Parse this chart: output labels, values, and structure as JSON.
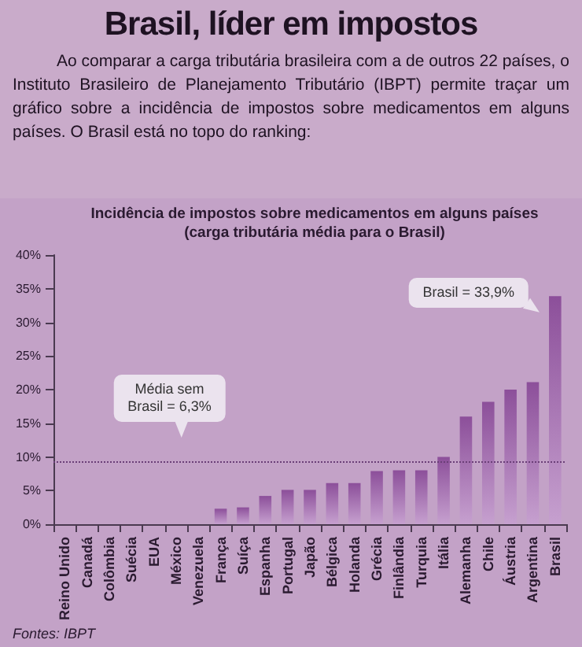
{
  "chart_data": {
    "type": "bar",
    "title": "Brasil, líder em impostos",
    "subtitle": "Ao comparar a carga tributária brasileira com a de outros 22 países, o Instituto Brasileiro de Planejamento Tributário (IBPT) permite traçar um gráfico sobre a incidência de impostos sobre medicamentos em alguns países. O Brasil está no topo do ranking:",
    "annotations": [
      "Incidência de impostos sobre medicamentos em alguns países",
      "(carga tributária média para o Brasil)",
      {
        "text": "Brasil = 33,9%",
        "x": "Brasil",
        "y": 33.9
      },
      "Média sem\nBrasil = 6,3%",
      "Fontes: IBPT"
    ],
    "categories": [
      "Reino Unido",
      "Canadá",
      "Colômbia",
      "Suécia",
      "EUA",
      "México",
      "Venezuela",
      "França",
      "Suíça",
      "Espanha",
      "Portugal",
      "Japão",
      "Bélgica",
      "Holanda",
      "Grécia",
      "Finlândia",
      "Turquia",
      "Itália",
      "Alemanha",
      "Chile",
      "Áustria",
      "Argentina",
      "Brasil"
    ],
    "values": [
      0,
      0,
      0,
      0,
      0,
      0,
      0,
      2.3,
      2.5,
      4.2,
      5.1,
      5.1,
      6.1,
      6.1,
      7.9,
      8.0,
      8.0,
      10.0,
      16.0,
      18.2,
      20.0,
      21.1,
      33.9
    ],
    "color": "#8c4f9a",
    "ylim": [
      0,
      40
    ],
    "yticks": [
      {
        "value": 0,
        "label": "0%"
      },
      {
        "value": 5,
        "label": "5%"
      },
      {
        "value": 10,
        "label": "10%"
      },
      {
        "value": 15,
        "label": "15%"
      },
      {
        "value": 20,
        "label": "20%"
      },
      {
        "value": 25,
        "label": "25%"
      },
      {
        "value": 30,
        "label": "30%"
      },
      {
        "value": 35,
        "label": "35%"
      },
      {
        "value": 40,
        "label": "40%"
      }
    ],
    "ref_lines": [
      {
        "axis": "y",
        "value": 9.3,
        "color": "#6b3f78",
        "line_style": "dotted"
      }
    ],
    "grid": false
  }
}
